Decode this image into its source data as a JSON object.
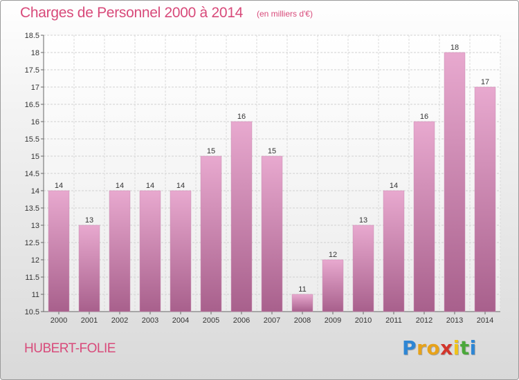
{
  "header": {
    "title": "Charges de Personnel 2000 à 2014",
    "subtitle": "(en milliers d'€)"
  },
  "footer": {
    "town": "HUBERT-FOLIE",
    "logo_letters": [
      "P",
      "r",
      "o",
      "x",
      "i",
      "t",
      "i"
    ]
  },
  "colors": {
    "accent": "#d84a7a",
    "bar_top": "#e8a9cf",
    "bar_bottom": "#a8608c",
    "logo": [
      "#2e86d4",
      "#e7a21a",
      "#e7a21a",
      "#d2352b",
      "#f0c419",
      "#4aa83a",
      "#2e86d4"
    ]
  },
  "chart_data": {
    "type": "bar",
    "title": "Charges de Personnel 2000 à 2014",
    "subtitle": "(en milliers d'€)",
    "categories": [
      "2000",
      "2001",
      "2002",
      "2003",
      "2004",
      "2005",
      "2006",
      "2007",
      "2008",
      "2009",
      "2010",
      "2011",
      "2012",
      "2013",
      "2014"
    ],
    "values": [
      14,
      13,
      14,
      14,
      14,
      15,
      16,
      15,
      11,
      12,
      13,
      14,
      16,
      18,
      17
    ],
    "data_labels": [
      "14",
      "13",
      "14",
      "14",
      "14",
      "15",
      "16",
      "15",
      "11",
      "12",
      "13",
      "14",
      "16",
      "18",
      "17"
    ],
    "ylim": [
      10.5,
      18.5
    ],
    "yticks": [
      10.5,
      11,
      11.5,
      12,
      12.5,
      13,
      13.5,
      14,
      14.5,
      15,
      15.5,
      16,
      16.5,
      17,
      17.5,
      18,
      18.5
    ],
    "ytick_labels": [
      "10.5",
      "11",
      "11.5",
      "12",
      "12.5",
      "13",
      "13.5",
      "14",
      "14.5",
      "15",
      "15.5",
      "16",
      "16.5",
      "17",
      "17.5",
      "18",
      "18.5"
    ],
    "grid": true,
    "xlabel": "",
    "ylabel": ""
  }
}
